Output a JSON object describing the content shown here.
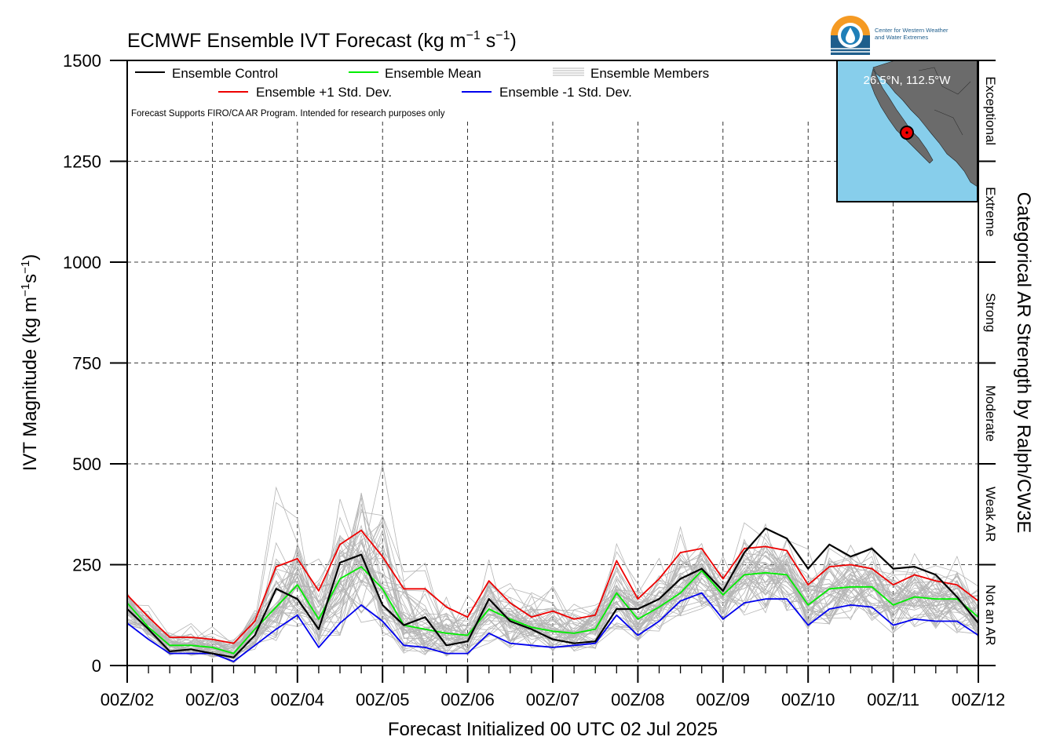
{
  "title_main": "ECMWF Ensemble IVT Forecast (kg m",
  "title_sup1": "−1",
  "title_mid": " s",
  "title_sup2": "−1",
  "title_end": ")",
  "ylabel_main": "IVT Magnitude (kg m",
  "ylabel_sup1": "−1",
  "ylabel_mid": "s",
  "ylabel_sup2": "−1",
  "ylabel_end": ")",
  "right_axis_label": "Categorical AR Strength by Ralph/CW3E",
  "categories": [
    "Not an AR",
    "Weak AR",
    "Moderate",
    "Strong",
    "Extreme",
    "Exceptional"
  ],
  "xlabel": "Forecast Initialized 00 UTC 02 Jul 2025",
  "disclaimer": "Forecast Supports FIRO/CA AR Program. Intended for research purposes only",
  "map_label": "26.5°N, 112.5°W",
  "logo": {
    "line1": "Center for Western Weather",
    "line2": "and Water Extremes"
  },
  "legend": {
    "control": "Ensemble Control",
    "mean": "Ensemble Mean",
    "members": "Ensemble Members",
    "plus": "Ensemble +1 Std. Dev.",
    "minus": "Ensemble -1 Std. Dev."
  },
  "colors": {
    "control": "#000000",
    "mean": "#00ee00",
    "plus": "#ee0000",
    "minus": "#0000ee",
    "members": "#b5b5b5",
    "ocean": "#87ceeb",
    "land": "#6b6b6b"
  },
  "chart_data": {
    "type": "line",
    "x_unit": "forecast hours from 00Z 02 Jul 2025 (6-hourly)",
    "x_tick_labels": [
      "00Z/02",
      "00Z/03",
      "00Z/04",
      "00Z/05",
      "00Z/06",
      "00Z/07",
      "00Z/08",
      "00Z/09",
      "00Z/10",
      "00Z/11",
      "00Z/12"
    ],
    "y_ticks": [
      0,
      250,
      500,
      750,
      1000,
      1250,
      1500
    ],
    "ylim": [
      0,
      1500
    ],
    "xlim": [
      0,
      240
    ],
    "category_thresholds": [
      250,
      500,
      750,
      1000,
      1250
    ],
    "grid": true,
    "legend_position": "top-left",
    "x": [
      0,
      6,
      12,
      18,
      24,
      30,
      36,
      42,
      48,
      54,
      60,
      66,
      72,
      78,
      84,
      90,
      96,
      102,
      108,
      114,
      120,
      126,
      132,
      138,
      144,
      150,
      156,
      162,
      168,
      174,
      180,
      186,
      192,
      198,
      204,
      210,
      216,
      222,
      228,
      234,
      240
    ],
    "series": [
      {
        "name": "Ensemble Control",
        "values": [
          140,
          90,
          35,
          40,
          30,
          20,
          75,
          190,
          165,
          90,
          255,
          275,
          150,
          100,
          120,
          50,
          60,
          165,
          110,
          90,
          65,
          55,
          60,
          140,
          140,
          165,
          215,
          240,
          185,
          280,
          340,
          315,
          240,
          300,
          270,
          290,
          240,
          245,
          225,
          170,
          105
        ]
      },
      {
        "name": "Ensemble Mean",
        "values": [
          155,
          95,
          50,
          50,
          45,
          30,
          90,
          145,
          200,
          115,
          215,
          245,
          190,
          100,
          90,
          80,
          75,
          140,
          115,
          95,
          85,
          80,
          90,
          180,
          115,
          145,
          180,
          235,
          175,
          225,
          230,
          225,
          150,
          190,
          195,
          195,
          150,
          170,
          165,
          165,
          120
        ]
      },
      {
        "name": "Ensemble +1 Std. Dev.",
        "values": [
          175,
          120,
          70,
          70,
          65,
          55,
          110,
          245,
          265,
          185,
          300,
          335,
          270,
          190,
          190,
          145,
          120,
          210,
          155,
          120,
          135,
          115,
          125,
          260,
          165,
          215,
          280,
          290,
          215,
          290,
          295,
          285,
          200,
          245,
          250,
          240,
          200,
          225,
          210,
          200,
          160
        ]
      },
      {
        "name": "Ensemble -1 Std. Dev.",
        "values": [
          105,
          65,
          30,
          30,
          30,
          10,
          50,
          90,
          125,
          45,
          105,
          150,
          110,
          50,
          45,
          30,
          30,
          80,
          55,
          50,
          45,
          50,
          55,
          125,
          75,
          110,
          160,
          180,
          115,
          155,
          165,
          165,
          100,
          140,
          150,
          145,
          100,
          115,
          110,
          110,
          75
        ]
      }
    ],
    "members_envelope": {
      "min_approx": [
        100,
        60,
        25,
        25,
        20,
        5,
        40,
        60,
        80,
        35,
        70,
        90,
        70,
        30,
        25,
        20,
        20,
        50,
        40,
        35,
        30,
        35,
        40,
        90,
        60,
        80,
        120,
        140,
        90,
        120,
        130,
        130,
        80,
        100,
        110,
        110,
        75,
        90,
        85,
        80,
        60
      ],
      "max_approx": [
        200,
        150,
        100,
        110,
        100,
        80,
        160,
        460,
        400,
        300,
        440,
        580,
        540,
        320,
        280,
        210,
        180,
        280,
        220,
        190,
        200,
        170,
        190,
        320,
        250,
        290,
        360,
        380,
        300,
        390,
        370,
        330,
        290,
        330,
        340,
        320,
        290,
        300,
        290,
        280,
        220
      ]
    }
  }
}
